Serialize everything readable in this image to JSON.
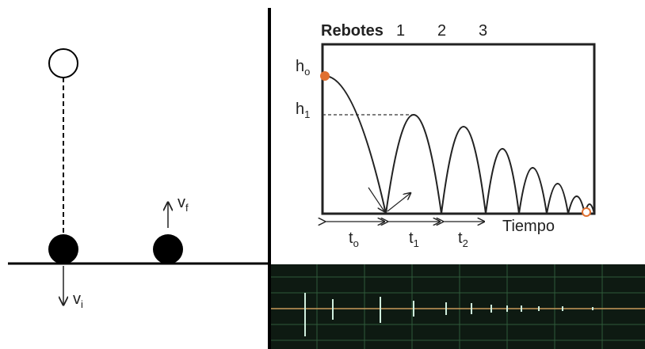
{
  "left": {
    "vf": {
      "main": "v",
      "sub": "f"
    },
    "vi": {
      "main": "v",
      "sub": "i"
    }
  },
  "graph": {
    "title": "Rebotes",
    "bounces": [
      "1",
      "2",
      "3"
    ],
    "h0": {
      "main": "h",
      "sub": "o"
    },
    "h1": {
      "main": "h",
      "sub": "1"
    },
    "intervals": [
      {
        "main": "t",
        "sub": "o"
      },
      {
        "main": "t",
        "sub": "1"
      },
      {
        "main": "t",
        "sub": "2"
      }
    ],
    "x_label": "Tiempo"
  }
}
